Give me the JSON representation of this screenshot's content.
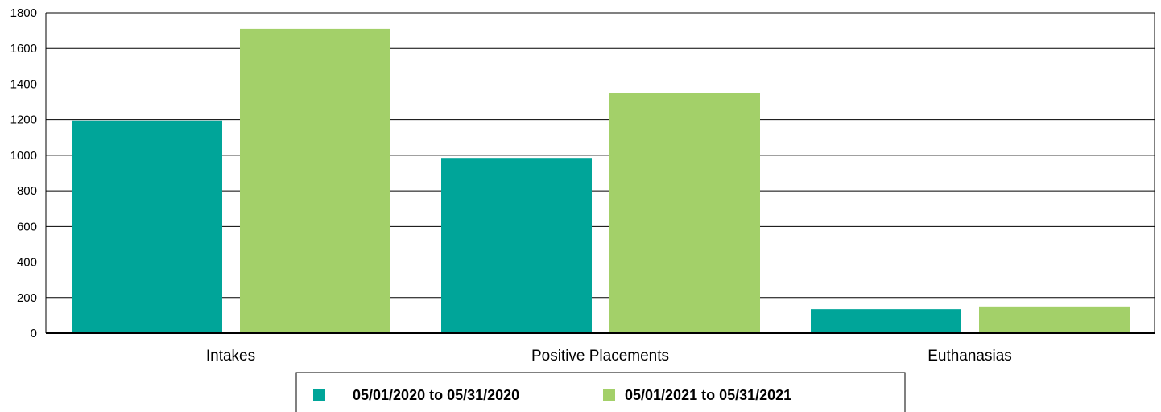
{
  "chart_data": {
    "type": "bar",
    "categories": [
      "Intakes",
      "Positive Placements",
      "Euthanasias"
    ],
    "series": [
      {
        "name": "05/01/2020 to 05/31/2020",
        "color": "#00A599",
        "values": [
          1195,
          985,
          135
        ]
      },
      {
        "name": "05/01/2021 to 05/31/2021",
        "color": "#A3D069",
        "values": [
          1710,
          1350,
          150
        ]
      }
    ],
    "y_ticks": [
      "0",
      "200",
      "400",
      "600",
      "800",
      "1000",
      "1200",
      "1400",
      "1600",
      "1800"
    ],
    "ylim": [
      0,
      1800
    ],
    "grid": true,
    "legend": "bottom"
  }
}
